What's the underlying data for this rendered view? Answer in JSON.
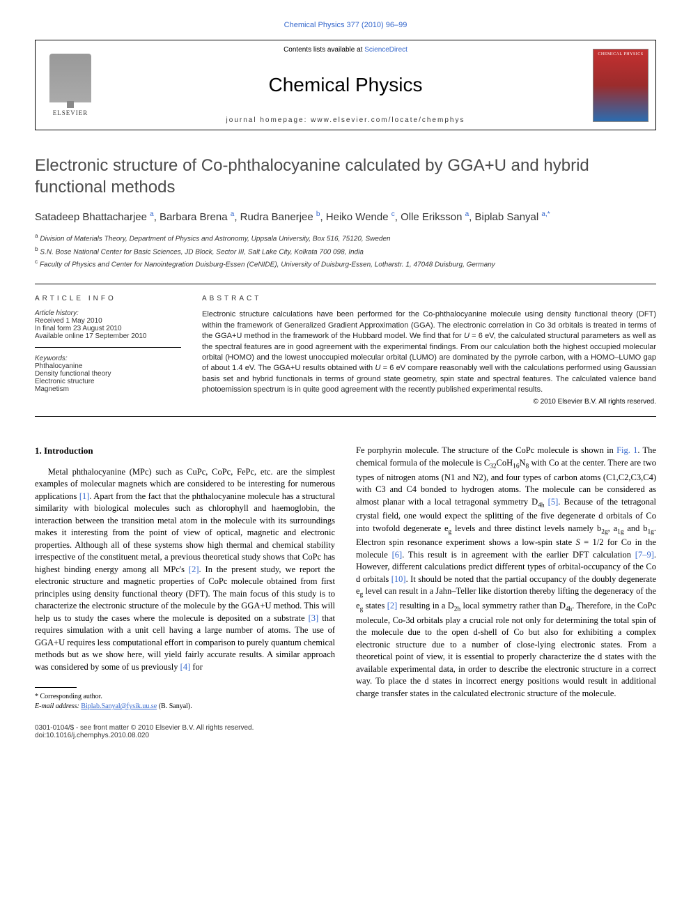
{
  "header": {
    "top_link_text": "Chemical Physics 377 (2010) 96–99",
    "contents_prefix": "Contents lists available at ",
    "contents_link": "ScienceDirect",
    "journal_name": "Chemical Physics",
    "homepage_prefix": "journal homepage: ",
    "homepage_url": "www.elsevier.com/locate/chemphys",
    "elsevier_label": "ELSEVIER",
    "cover_label": "CHEMICAL PHYSICS"
  },
  "article": {
    "title": "Electronic structure of Co-phthalocyanine calculated by GGA+U and hybrid functional methods",
    "authors_html": "Satadeep Bhattacharjee <sup>a</sup>, Barbara Brena <sup>a</sup>, Rudra Banerjee <sup>b</sup>, Heiko Wende <sup>c</sup>, Olle Eriksson <sup>a</sup>, Biplab Sanyal <sup>a,*</sup>",
    "affiliations": [
      {
        "marker": "a",
        "text": "Division of Materials Theory, Department of Physics and Astronomy, Uppsala University, Box 516, 75120, Sweden"
      },
      {
        "marker": "b",
        "text": "S.N. Bose National Center for Basic Sciences, JD Block, Sector III, Salt Lake City, Kolkata 700 098, India"
      },
      {
        "marker": "c",
        "text": "Faculty of Physics and Center for Nanointegration Duisburg-Essen (CeNIDE), University of Duisburg-Essen, Lotharstr. 1, 47048 Duisburg, Germany"
      }
    ]
  },
  "article_info": {
    "heading": "ARTICLE INFO",
    "history_label": "Article history:",
    "history_lines": [
      "Received 1 May 2010",
      "In final form 23 August 2010",
      "Available online 17 September 2010"
    ],
    "keywords_label": "Keywords:",
    "keywords": [
      "Phthalocyanine",
      "Density functional theory",
      "Electronic structure",
      "Magnetism"
    ]
  },
  "abstract": {
    "heading": "ABSTRACT",
    "text": "Electronic structure calculations have been performed for the Co-phthalocyanine molecule using density functional theory (DFT) within the framework of Generalized Gradient Approximation (GGA). The electronic correlation in Co 3d orbitals is treated in terms of the GGA+U method in the framework of the Hubbard model. We find that for U = 6 eV, the calculated structural parameters as well as the spectral features are in good agreement with the experimental findings. From our calculation both the highest occupied molecular orbital (HOMO) and the lowest unoccupied molecular orbital (LUMO) are dominated by the pyrrole carbon, with a HOMO–LUMO gap of about 1.4 eV. The GGA+U results obtained with U = 6 eV compare reasonably well with the calculations performed using Gaussian basis set and hybrid functionals in terms of ground state geometry, spin state and spectral features. The calculated valence band photoemission spectrum is in quite good agreement with the recently published experimental results.",
    "copyright": "© 2010 Elsevier B.V. All rights reserved."
  },
  "body": {
    "section_heading": "1. Introduction",
    "col1_para": "Metal phthalocyanine (MPc) such as CuPc, CoPc, FePc, etc. are the simplest examples of molecular magnets which are considered to be interesting for numerous applications [1]. Apart from the fact that the phthalocyanine molecule has a structural similarity with biological molecules such as chlorophyll and haemoglobin, the interaction between the transition metal atom in the molecule with its surroundings makes it interesting from the point of view of optical, magnetic and electronic properties. Although all of these systems show high thermal and chemical stability irrespective of the constituent metal, a previous theoretical study shows that CoPc has highest binding energy among all MPc's [2]. In the present study, we report the electronic structure and magnetic properties of CoPc molecule obtained from first principles using density functional theory (DFT). The main focus of this study is to characterize the electronic structure of the molecule by the GGA+U method. This will help us to study the cases where the molecule is deposited on a substrate [3] that requires simulation with a unit cell having a large number of atoms. The use of GGA+U requires less computational effort in comparison to purely quantum chemical methods but as we show here, will yield fairly accurate results. A similar approach was considered by some of us previously [4] for",
    "col2_para": "Fe porphyrin molecule. The structure of the CoPc molecule is shown in Fig. 1. The chemical formula of the molecule is C₃₂CoH₁₆N₈ with Co at the center. There are two types of nitrogen atoms (N1 and N2), and four types of carbon atoms (C1,C2,C3,C4) with C3 and C4 bonded to hydrogen atoms. The molecule can be considered as almost planar with a local tetragonal symmetry D₄ₕ [5]. Because of the tetragonal crystal field, one would expect the splitting of the five degenerate d orbitals of Co into twofold degenerate eₘ levels and three distinct levels namely b₂ₘ, a₁ₘ and b₁ₘ. Electron spin resonance experiment shows a low-spin state S = 1/2 for Co in the molecule [6]. This result is in agreement with the earlier DFT calculation [7–9]. However, different calculations predict different types of orbital-occupancy of the Co d orbitals [10]. It should be noted that the partial occupancy of the doubly degenerate eₘ level can result in a Jahn–Teller like distortion thereby lifting the degeneracy of the eₘ states [2] resulting in a D₂ₕ local symmetry rather than D₄ₕ. Therefore, in the CoPc molecule, Co-3d orbitals play a crucial role not only for determining the total spin of the molecule due to the open d-shell of Co but also for exhibiting a complex electronic structure due to a number of close-lying electronic states. From a theoretical point of view, it is essential to properly characterize the d states with the available experimental data, in order to describe the electronic structure in a correct way. To place the d states in incorrect energy positions would result in additional charge transfer states in the calculated electronic structure of the molecule."
  },
  "footnote": {
    "star_label": "* Corresponding author.",
    "email_label": "E-mail address:",
    "email": "Biplab.Sanyal@fysik.uu.se",
    "email_suffix": "(B. Sanyal)."
  },
  "footer": {
    "front_matter": "0301-0104/$ - see front matter © 2010 Elsevier B.V. All rights reserved.",
    "doi": "doi:10.1016/j.chemphys.2010.08.020"
  },
  "colors": {
    "link": "#3366cc",
    "text": "#000000",
    "gray_text": "#333333",
    "cover_top": "#c53030",
    "cover_bottom": "#2b6cb0"
  }
}
